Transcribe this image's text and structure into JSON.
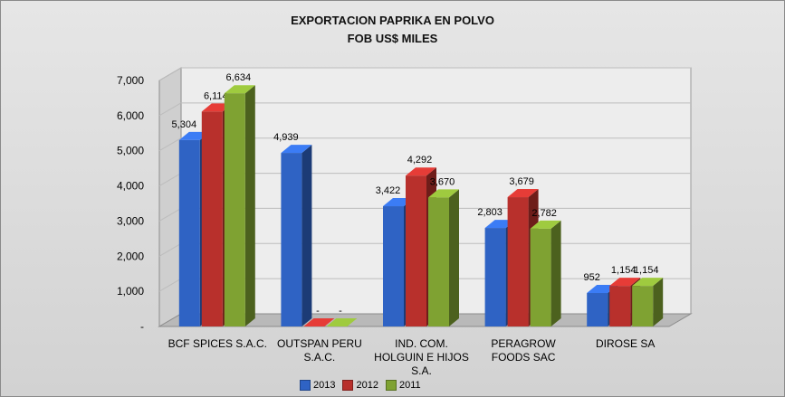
{
  "chart_data": {
    "type": "bar",
    "title": "EXPORTACION PAPRIKA EN POLVO",
    "subtitle": "FOB US$ MILES",
    "categories": [
      [
        "BCF SPICES S.A.C."
      ],
      [
        "OUTSPAN PERU",
        "S.A.C."
      ],
      [
        "IND. COM.",
        "HOLGUIN E HIJOS",
        "S.A."
      ],
      [
        "PERAGROW",
        "FOODS SAC"
      ],
      [
        "DIROSE SA"
      ]
    ],
    "series": [
      {
        "name": "2013",
        "color": "#2f63c4",
        "values": [
          5304,
          4939,
          3422,
          2803,
          952
        ],
        "labels": [
          "5,304",
          "4,939",
          "3,422",
          "2,803",
          "952"
        ]
      },
      {
        "name": "2012",
        "color": "#b8302c",
        "values": [
          6114,
          0,
          4292,
          3679,
          1154
        ],
        "labels": [
          "6,114",
          "-",
          "4,292",
          "3,679",
          "1,154"
        ]
      },
      {
        "name": "2011",
        "color": "#7fa232",
        "values": [
          6634,
          0,
          3670,
          2782,
          1154
        ],
        "labels": [
          "6,634",
          "-",
          "3,670",
          "2,782",
          "1,154"
        ]
      }
    ],
    "yticks": [
      0,
      1000,
      2000,
      3000,
      4000,
      5000,
      6000,
      7000
    ],
    "ytick_labels": [
      "-",
      "1,000",
      "2,000",
      "3,000",
      "4,000",
      "5,000",
      "6,000",
      "7,000"
    ],
    "ylim": [
      0,
      7000
    ],
    "xlabel": "",
    "ylabel": "",
    "legend_position": "bottom"
  }
}
